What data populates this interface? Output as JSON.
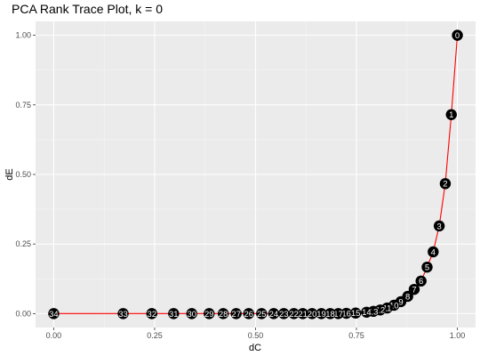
{
  "chart_data": {
    "type": "scatter",
    "title": "PCA Rank Trace Plot, k = 0",
    "xlabel": "dC",
    "ylabel": "dE",
    "xlim": [
      -0.045,
      1.045
    ],
    "ylim": [
      -0.05,
      1.05
    ],
    "x_ticks": [
      0.0,
      0.25,
      0.5,
      0.75,
      1.0
    ],
    "x_tick_labels": [
      "0.00",
      "0.25",
      "0.50",
      "0.75",
      "1.00"
    ],
    "y_ticks": [
      0.0,
      0.25,
      0.5,
      0.75,
      1.0
    ],
    "y_tick_labels": [
      "0.00",
      "0.25",
      "0.50",
      "0.75",
      "1.00"
    ],
    "grid": true,
    "line_color": "#ff0000",
    "point_color": "#000000",
    "label_color": "#ffffff",
    "panel_background": "#ebebeb",
    "points": [
      {
        "label": "0",
        "x": 1.0,
        "y": 1.0
      },
      {
        "label": "1",
        "x": 0.985,
        "y": 0.715
      },
      {
        "label": "2",
        "x": 0.97,
        "y": 0.467
      },
      {
        "label": "3",
        "x": 0.955,
        "y": 0.315
      },
      {
        "label": "4",
        "x": 0.94,
        "y": 0.222
      },
      {
        "label": "5",
        "x": 0.925,
        "y": 0.167
      },
      {
        "label": "6",
        "x": 0.91,
        "y": 0.117
      },
      {
        "label": "7",
        "x": 0.893,
        "y": 0.087
      },
      {
        "label": "8",
        "x": 0.877,
        "y": 0.062
      },
      {
        "label": "9",
        "x": 0.86,
        "y": 0.043
      },
      {
        "label": "10",
        "x": 0.843,
        "y": 0.03
      },
      {
        "label": "11",
        "x": 0.826,
        "y": 0.02
      },
      {
        "label": "12",
        "x": 0.809,
        "y": 0.013
      },
      {
        "label": "13",
        "x": 0.792,
        "y": 0.008
      },
      {
        "label": "14",
        "x": 0.775,
        "y": 0.005
      },
      {
        "label": "15",
        "x": 0.748,
        "y": 0.002
      },
      {
        "label": "16",
        "x": 0.725,
        "y": 0.001
      },
      {
        "label": "17",
        "x": 0.705,
        "y": 0.0
      },
      {
        "label": "18",
        "x": 0.685,
        "y": 0.0
      },
      {
        "label": "19",
        "x": 0.663,
        "y": 0.0
      },
      {
        "label": "20",
        "x": 0.64,
        "y": 0.0
      },
      {
        "label": "21",
        "x": 0.617,
        "y": 0.0
      },
      {
        "label": "22",
        "x": 0.595,
        "y": 0.0
      },
      {
        "label": "23",
        "x": 0.57,
        "y": 0.0
      },
      {
        "label": "24",
        "x": 0.545,
        "y": 0.0
      },
      {
        "label": "25",
        "x": 0.515,
        "y": 0.0
      },
      {
        "label": "26",
        "x": 0.483,
        "y": 0.0
      },
      {
        "label": "27",
        "x": 0.452,
        "y": 0.0
      },
      {
        "label": "28",
        "x": 0.42,
        "y": 0.0
      },
      {
        "label": "29",
        "x": 0.385,
        "y": 0.0
      },
      {
        "label": "30",
        "x": 0.342,
        "y": 0.0
      },
      {
        "label": "31",
        "x": 0.297,
        "y": 0.0
      },
      {
        "label": "32",
        "x": 0.243,
        "y": 0.0
      },
      {
        "label": "33",
        "x": 0.172,
        "y": 0.0
      },
      {
        "label": "34",
        "x": 0.0,
        "y": 0.0
      }
    ]
  }
}
